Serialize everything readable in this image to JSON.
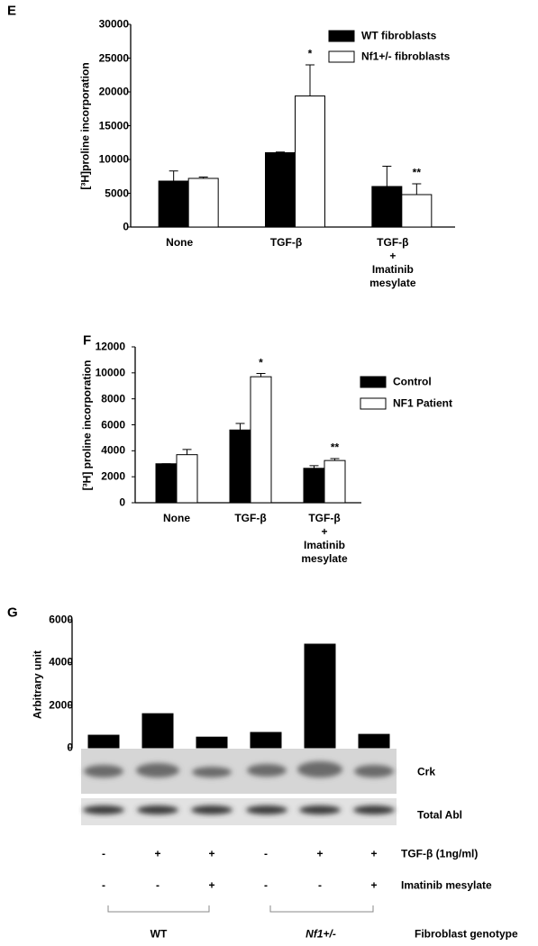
{
  "chart_data": [
    {
      "panel": "E",
      "type": "bar",
      "categories": [
        "None",
        "TGF-β",
        "TGF-β\n+\nImatinib\nmesylate"
      ],
      "series": [
        {
          "name": "WT fibroblasts",
          "color": "#000000",
          "values": [
            6800,
            11000,
            6000
          ],
          "errors": [
            1500,
            100,
            3000
          ]
        },
        {
          "name": "Nf1+/- fibroblasts",
          "color": "#ffffff",
          "values": [
            7200,
            19400,
            4800
          ],
          "errors": [
            200,
            4600,
            1600
          ],
          "significance": [
            null,
            "*",
            "**"
          ]
        }
      ],
      "y_label": "[³H]proline incorporation",
      "ylim": [
        0,
        30000
      ],
      "yticks": [
        0,
        5000,
        10000,
        15000,
        20000,
        25000,
        30000
      ]
    },
    {
      "panel": "F",
      "type": "bar",
      "categories": [
        "None",
        "TGF-β",
        "TGF-β\n+\nImatinib\nmesylate"
      ],
      "series": [
        {
          "name": "Control",
          "color": "#000000",
          "values": [
            3000,
            5600,
            2650
          ],
          "errors": [
            0,
            500,
            200
          ]
        },
        {
          "name": "NF1 Patient",
          "color": "#ffffff",
          "values": [
            3700,
            9700,
            3250
          ],
          "errors": [
            400,
            250,
            150
          ],
          "significance": [
            null,
            "*",
            "**"
          ]
        }
      ],
      "y_label": "[³H] proline incorporation",
      "ylim": [
        0,
        12000
      ],
      "yticks": [
        0,
        2000,
        4000,
        6000,
        8000,
        10000,
        12000
      ]
    },
    {
      "panel": "G",
      "type": "bar",
      "values": [
        590,
        1600,
        500,
        720,
        4860,
        630
      ],
      "color": "#000000",
      "y_label": "Arbitrary unit",
      "ylim": [
        0,
        6000
      ],
      "yticks": [
        0,
        2000,
        4000,
        6000
      ]
    }
  ],
  "blot": {
    "bands": [
      "Crk",
      "Total Abl"
    ],
    "treatments": [
      {
        "label": "TGF-β (1ng/ml)",
        "signs": [
          "-",
          "+",
          "+",
          "-",
          "+",
          "+"
        ]
      },
      {
        "label": "Imatinib mesylate",
        "signs": [
          "-",
          "-",
          "+",
          "-",
          "-",
          "+"
        ]
      }
    ],
    "genotypes": [
      "WT",
      "Nf1+/-"
    ],
    "genotype_label": "Fibroblast genotype"
  }
}
